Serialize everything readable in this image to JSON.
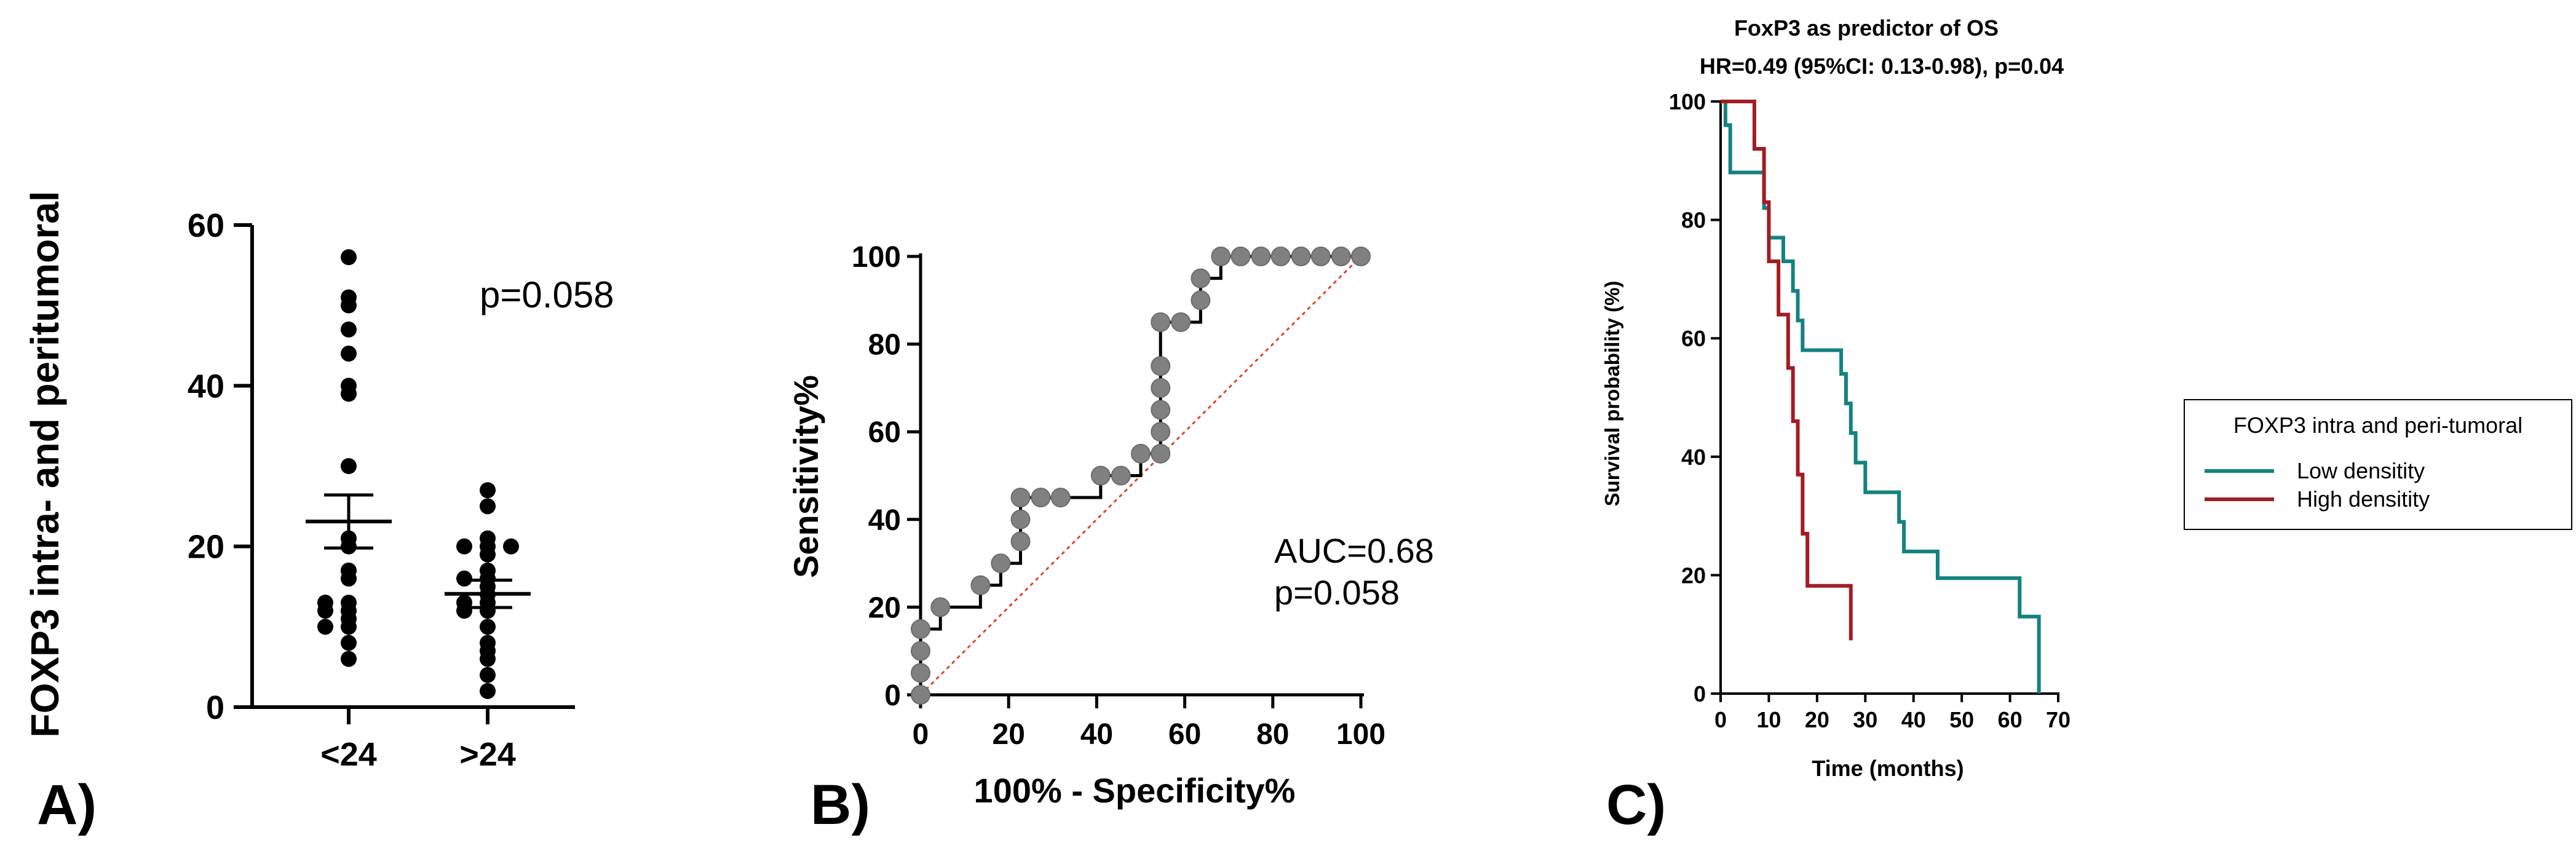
{
  "panel_labels": [
    "A)",
    "B)",
    "C)"
  ],
  "colors": {
    "axis": "#000000",
    "dot": "#000000",
    "roc_marker": "#808080",
    "roc_line": "#000000",
    "reference_line": "#e0442c",
    "low_density": "#138280",
    "high_density": "#a31c22"
  },
  "chart_data": [
    {
      "id": "A",
      "type": "scatter",
      "title": "",
      "ylabel": "FOXP3 intra- and peritumoral",
      "xlabel": "",
      "categories": [
        "<24",
        ">24"
      ],
      "ylim": [
        0,
        60
      ],
      "yticks": [
        0,
        20,
        40,
        60
      ],
      "annotation": "p=0.058",
      "groups": [
        {
          "name": "<24",
          "values": [
            56,
            51,
            50,
            47,
            44,
            40,
            39,
            30,
            21,
            20,
            17,
            16,
            13,
            13,
            12,
            12,
            11,
            10,
            10,
            8,
            6
          ],
          "mean": 23.1,
          "sem_low": 19.8,
          "sem_high": 26.4
        },
        {
          "name": ">24",
          "values": [
            27,
            25,
            21,
            20,
            20,
            20,
            19,
            17,
            16,
            16,
            15,
            14,
            13,
            13,
            12,
            12,
            10,
            8,
            7,
            6,
            4,
            2
          ],
          "mean": 14.1,
          "sem_low": 12.4,
          "sem_high": 15.8
        }
      ]
    },
    {
      "id": "B",
      "type": "line",
      "title": "",
      "xlabel": "100% - Specificity%",
      "ylabel": "Sensitivity%",
      "xlim": [
        0,
        100
      ],
      "ylim": [
        0,
        100
      ],
      "xticks": [
        0,
        20,
        40,
        60,
        80,
        100
      ],
      "yticks": [
        0,
        20,
        40,
        60,
        80,
        100
      ],
      "annotation": [
        "AUC=0.68",
        "p=0.058"
      ],
      "series": [
        {
          "name": "ROC",
          "x": [
            0,
            0,
            0,
            0,
            4.5,
            13.6,
            18.2,
            22.7,
            22.7,
            22.7,
            27.3,
            31.8,
            40.9,
            45.5,
            50,
            54.5,
            54.5,
            54.5,
            54.5,
            54.5,
            54.5,
            59.1,
            63.6,
            63.6,
            68.2,
            72.7,
            77.3,
            81.8,
            86.4,
            90.9,
            95.5,
            100
          ],
          "y": [
            0,
            5,
            10,
            15,
            20,
            25,
            30,
            35,
            40,
            45,
            45,
            45,
            50,
            50,
            55,
            55,
            60,
            65,
            70,
            75,
            85,
            85,
            90,
            95,
            100,
            100,
            100,
            100,
            100,
            100,
            100,
            100
          ]
        },
        {
          "name": "reference",
          "x": [
            0,
            100
          ],
          "y": [
            0,
            100
          ]
        }
      ]
    },
    {
      "id": "C",
      "type": "line",
      "title": "FoxP3 as predictor of OS",
      "subtitle": "HR=0.49 (95%CI: 0.13-0.98), p=0.04",
      "xlabel": "Time (months)",
      "ylabel": "Survival probability (%)",
      "xlim": [
        0,
        70
      ],
      "ylim": [
        0,
        100
      ],
      "xticks": [
        0,
        10,
        20,
        30,
        40,
        50,
        60,
        70
      ],
      "yticks": [
        0,
        20,
        40,
        60,
        80,
        100
      ],
      "legend": {
        "title": "FOXP3 intra and peri-tumoral",
        "entries": [
          "Low densitity",
          "High densitity"
        ],
        "placement": "right"
      },
      "series": [
        {
          "name": "Low densitity",
          "x": [
            0,
            1,
            2,
            9,
            10,
            13,
            15,
            16,
            17,
            18,
            25,
            26,
            27,
            28,
            30,
            33,
            37,
            38,
            40,
            45,
            62,
            66
          ],
          "y": [
            100,
            96,
            88,
            82,
            77,
            73,
            68,
            63,
            58,
            58,
            54,
            49,
            44,
            39,
            34,
            34,
            29,
            24,
            24,
            19.5,
            13,
            0
          ]
        },
        {
          "name": "High densitity",
          "x": [
            0,
            7,
            9,
            10,
            12,
            14,
            15,
            16,
            17,
            18,
            26,
            27
          ],
          "y": [
            100,
            92,
            83,
            73,
            64,
            55,
            46,
            37,
            27,
            18.2,
            18.2,
            9
          ]
        }
      ]
    }
  ]
}
